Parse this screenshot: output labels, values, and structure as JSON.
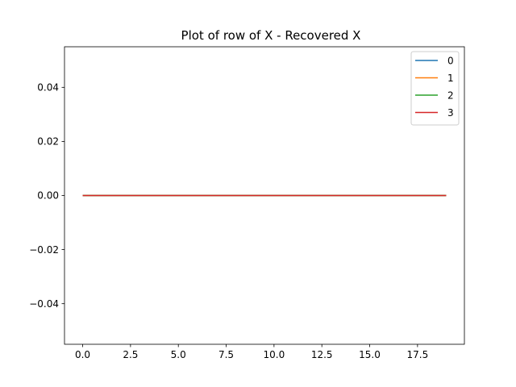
{
  "chart_data": {
    "type": "line",
    "title": "Plot of row of X - Recovered X",
    "xlabel": "",
    "ylabel": "",
    "xlim": [
      -0.95,
      19.95
    ],
    "ylim": [
      -0.055,
      0.055
    ],
    "x_ticks": [
      0.0,
      2.5,
      5.0,
      7.5,
      10.0,
      12.5,
      15.0,
      17.5
    ],
    "x_tick_labels": [
      "0.0",
      "2.5",
      "5.0",
      "7.5",
      "10.0",
      "12.5",
      "15.0",
      "17.5"
    ],
    "y_ticks": [
      -0.04,
      -0.02,
      0.0,
      0.02,
      0.04
    ],
    "y_tick_labels": [
      "−0.04",
      "−0.02",
      "0.00",
      "0.02",
      "0.04"
    ],
    "grid": false,
    "legend_position": "top-right",
    "x": [
      0,
      1,
      2,
      3,
      4,
      5,
      6,
      7,
      8,
      9,
      10,
      11,
      12,
      13,
      14,
      15,
      16,
      17,
      18,
      19
    ],
    "series": [
      {
        "name": "0",
        "color": "#1f77b4",
        "values": [
          0,
          0,
          0,
          0,
          0,
          0,
          0,
          0,
          0,
          0,
          0,
          0,
          0,
          0,
          0,
          0,
          0,
          0,
          0,
          0
        ]
      },
      {
        "name": "1",
        "color": "#ff7f0e",
        "values": [
          0,
          0,
          0,
          0,
          0,
          0,
          0,
          0,
          0,
          0,
          0,
          0,
          0,
          0,
          0,
          0,
          0,
          0,
          0,
          0
        ]
      },
      {
        "name": "2",
        "color": "#2ca02c",
        "values": [
          0,
          0,
          0,
          0,
          0,
          0,
          0,
          0,
          0,
          0,
          0,
          0,
          0,
          0,
          0,
          0,
          0,
          0,
          0,
          0
        ]
      },
      {
        "name": "3",
        "color": "#d62728",
        "values": [
          0,
          0,
          0,
          0,
          0,
          0,
          0,
          0,
          0,
          0,
          0,
          0,
          0,
          0,
          0,
          0,
          0,
          0,
          0,
          0
        ]
      }
    ]
  }
}
